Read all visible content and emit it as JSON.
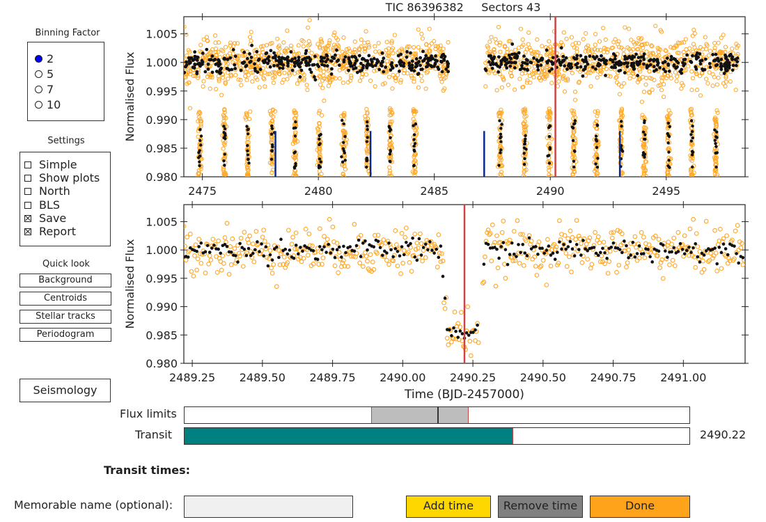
{
  "title": "TIC 86396382     Sectors 43",
  "binning": {
    "label": "Binning Factor",
    "options": [
      "2",
      "5",
      "7",
      "10"
    ],
    "selected": "2"
  },
  "settings": {
    "label": "Settings",
    "items": [
      {
        "label": "Simple",
        "checked": false
      },
      {
        "label": "Show plots",
        "checked": false
      },
      {
        "label": "North",
        "checked": false
      },
      {
        "label": "BLS",
        "checked": false
      },
      {
        "label": "Save",
        "checked": true
      },
      {
        "label": "Report",
        "checked": true
      }
    ]
  },
  "quick_look": {
    "label": "Quick look",
    "buttons": [
      "Background",
      "Centroids",
      "Stellar tracks",
      "Periodogram"
    ]
  },
  "seismology_label": "Seismology",
  "chart_data": [
    {
      "type": "scatter",
      "title": "TIC 86396382     Sectors 43",
      "xlabel": "",
      "ylabel": "Normalised Flux",
      "xlim": [
        2474.2,
        2498.4
      ],
      "ylim": [
        0.98,
        1.008
      ],
      "x_ticks": [
        2475,
        2480,
        2485,
        2490,
        2495
      ],
      "y_ticks": [
        0.98,
        0.985,
        0.99,
        0.995,
        1.0,
        1.005
      ],
      "data_gap": [
        2485.6,
        2487.2
      ],
      "baseline_flux": 1.0,
      "transit_depth_flux": 0.985,
      "transit_times": [
        2474.9,
        2475.95,
        2476.95,
        2478.0,
        2479.0,
        2480.05,
        2481.1,
        2482.1,
        2483.1,
        2484.15,
        2487.85,
        2488.9,
        2489.95,
        2491.0,
        2492.0,
        2493.05,
        2494.05,
        2495.1,
        2496.1,
        2497.15
      ],
      "blue_markers": [
        2478.15,
        2482.25,
        2487.15,
        2493.0
      ],
      "red_marker": 2490.22,
      "series": [
        {
          "name": "",
          "color": "#ffa726",
          "marker": "open-circle"
        },
        {
          "name": "",
          "color": "#111111",
          "marker": "filled-circle"
        }
      ]
    },
    {
      "type": "scatter",
      "title": "",
      "xlabel": "Time (BJD-2457000)",
      "ylabel": "Normalised Flux",
      "xlim": [
        2489.22,
        2491.22
      ],
      "ylim": [
        0.98,
        1.008
      ],
      "x_ticks": [
        2489.25,
        2489.5,
        2489.75,
        2490.0,
        2490.25,
        2490.5,
        2490.75,
        2491.0
      ],
      "y_ticks": [
        0.98,
        0.985,
        0.99,
        0.995,
        1.0,
        1.005
      ],
      "transit_center": 2490.22,
      "transit_ingress": 2490.16,
      "transit_egress": 2490.27,
      "transit_depth_flux": 0.9855,
      "red_marker": 2490.22,
      "series": [
        {
          "name": "",
          "color": "#ffa726",
          "marker": "open-circle"
        },
        {
          "name": "",
          "color": "#111111",
          "marker": "filled-circle"
        }
      ]
    }
  ],
  "flux_limits": {
    "label": "Flux limits",
    "range_fraction": [
      0.37,
      0.56
    ],
    "center_fraction": 0.5
  },
  "transit_slider": {
    "label": "Transit",
    "fraction": 0.65,
    "value": "2490.22",
    "color": "#008080"
  },
  "transit_times_label": "Transit times:",
  "memorable_name": {
    "label": "Memorable name (optional):",
    "value": ""
  },
  "actions": {
    "add": "Add time",
    "remove": "Remove time",
    "done": "Done"
  },
  "colors": {
    "orange": "#ffa726",
    "red": "#cc4444",
    "blue": "#0a2a8a",
    "teal": "#008080",
    "yellow": "#ffd700",
    "gray": "#808080",
    "done": "#ffa31a"
  }
}
